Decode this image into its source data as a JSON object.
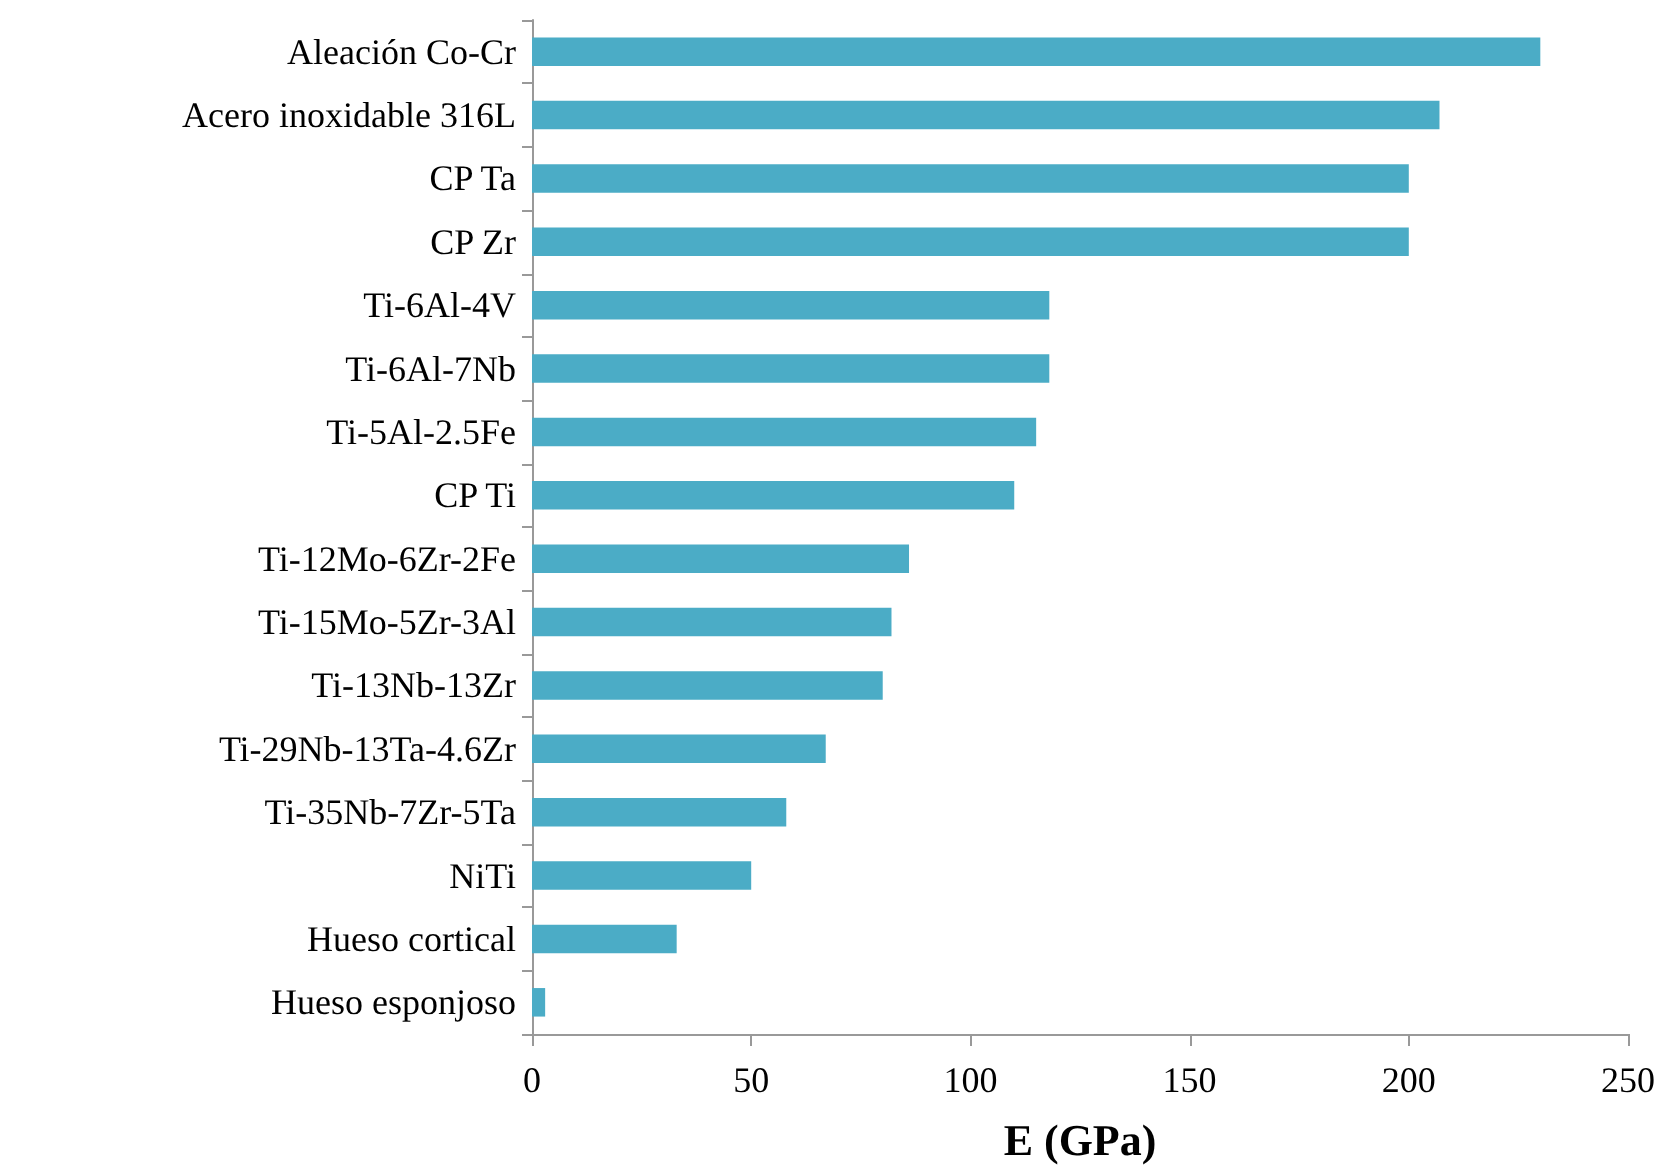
{
  "chart_data": {
    "type": "bar",
    "orientation": "horizontal",
    "xlabel": "E (GPa)",
    "categories": [
      "Aleación Co-Cr",
      "Acero inoxidable 316L",
      "CP Ta",
      "CP Zr",
      "Ti-6Al-4V",
      "Ti-6Al-7Nb",
      "Ti-5Al-2.5Fe",
      "CP Ti",
      "Ti-12Mo-6Zr-2Fe",
      "Ti-15Mo-5Zr-3Al",
      "Ti-13Nb-13Zr",
      "Ti-29Nb-13Ta-4.6Zr",
      "Ti-35Nb-7Zr-5Ta",
      "NiTi",
      "Hueso cortical",
      "Hueso esponjoso"
    ],
    "values": [
      230,
      207,
      200,
      200,
      118,
      118,
      115,
      110,
      86,
      82,
      80,
      67,
      58,
      50,
      33,
      3
    ],
    "color": "#4bacc6",
    "xlim": [
      0,
      250
    ],
    "xticks": [
      0,
      50,
      100,
      150,
      200,
      250
    ]
  }
}
